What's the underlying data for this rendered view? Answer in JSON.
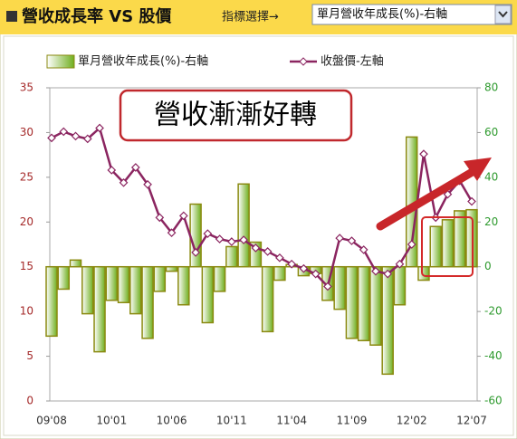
{
  "header": {
    "title": "營收成長率 VS 股價",
    "selector_label": "指標選擇→",
    "dropdown": "單月營收年成長(%)-右軸"
  },
  "chart_data": {
    "type": "bar_line",
    "annotation": "營收漸漸好轉",
    "categories": [
      "09'08",
      null,
      null,
      null,
      null,
      "10'01",
      null,
      null,
      null,
      null,
      "10'06",
      null,
      null,
      null,
      null,
      "10'11",
      null,
      null,
      null,
      null,
      "11'04",
      null,
      null,
      null,
      null,
      "11'09",
      null,
      null,
      null,
      null,
      "12'02",
      null,
      null,
      null,
      null,
      "12'07"
    ],
    "series": [
      {
        "name": "單月營收年成長(%)-右軸",
        "type": "bar",
        "axis": "y2",
        "color": "#6fae1e",
        "values": [
          -31,
          -10,
          3,
          -21,
          -38,
          -15,
          -16,
          -21,
          -32,
          -11,
          -2,
          -17,
          28,
          -25,
          -11,
          9,
          37,
          11,
          -29,
          -6,
          1,
          -4,
          -3,
          -15,
          -19,
          -32,
          -33,
          -35,
          -48,
          -17,
          58,
          -6,
          18,
          21,
          25,
          25.5
        ]
      },
      {
        "name": "收盤價-左軸",
        "type": "line",
        "color": "#8b2560",
        "values": [
          29.4,
          30.1,
          29.6,
          29.3,
          30.5,
          25.8,
          24.4,
          26.1,
          24.2,
          20.5,
          18.8,
          20.7,
          16.6,
          18.7,
          18.1,
          17.8,
          18.0,
          17.1,
          16.7,
          16.0,
          15.3,
          14.8,
          14.2,
          12.8,
          18.2,
          17.9,
          16.9,
          14.5,
          14.2,
          15.3,
          17.5,
          27.6,
          20.5,
          23.1,
          24.6,
          22.3
        ]
      }
    ],
    "ylim": [
      0,
      35
    ],
    "yticks": [
      0,
      5,
      10,
      15,
      20,
      25,
      30,
      35
    ],
    "ycolor": "#a52a2a",
    "y2lim": [
      -60,
      80
    ],
    "y2ticks": [
      -60,
      -40,
      -20,
      0,
      20,
      40,
      60,
      80
    ],
    "y2color": "#2e9a2e"
  }
}
